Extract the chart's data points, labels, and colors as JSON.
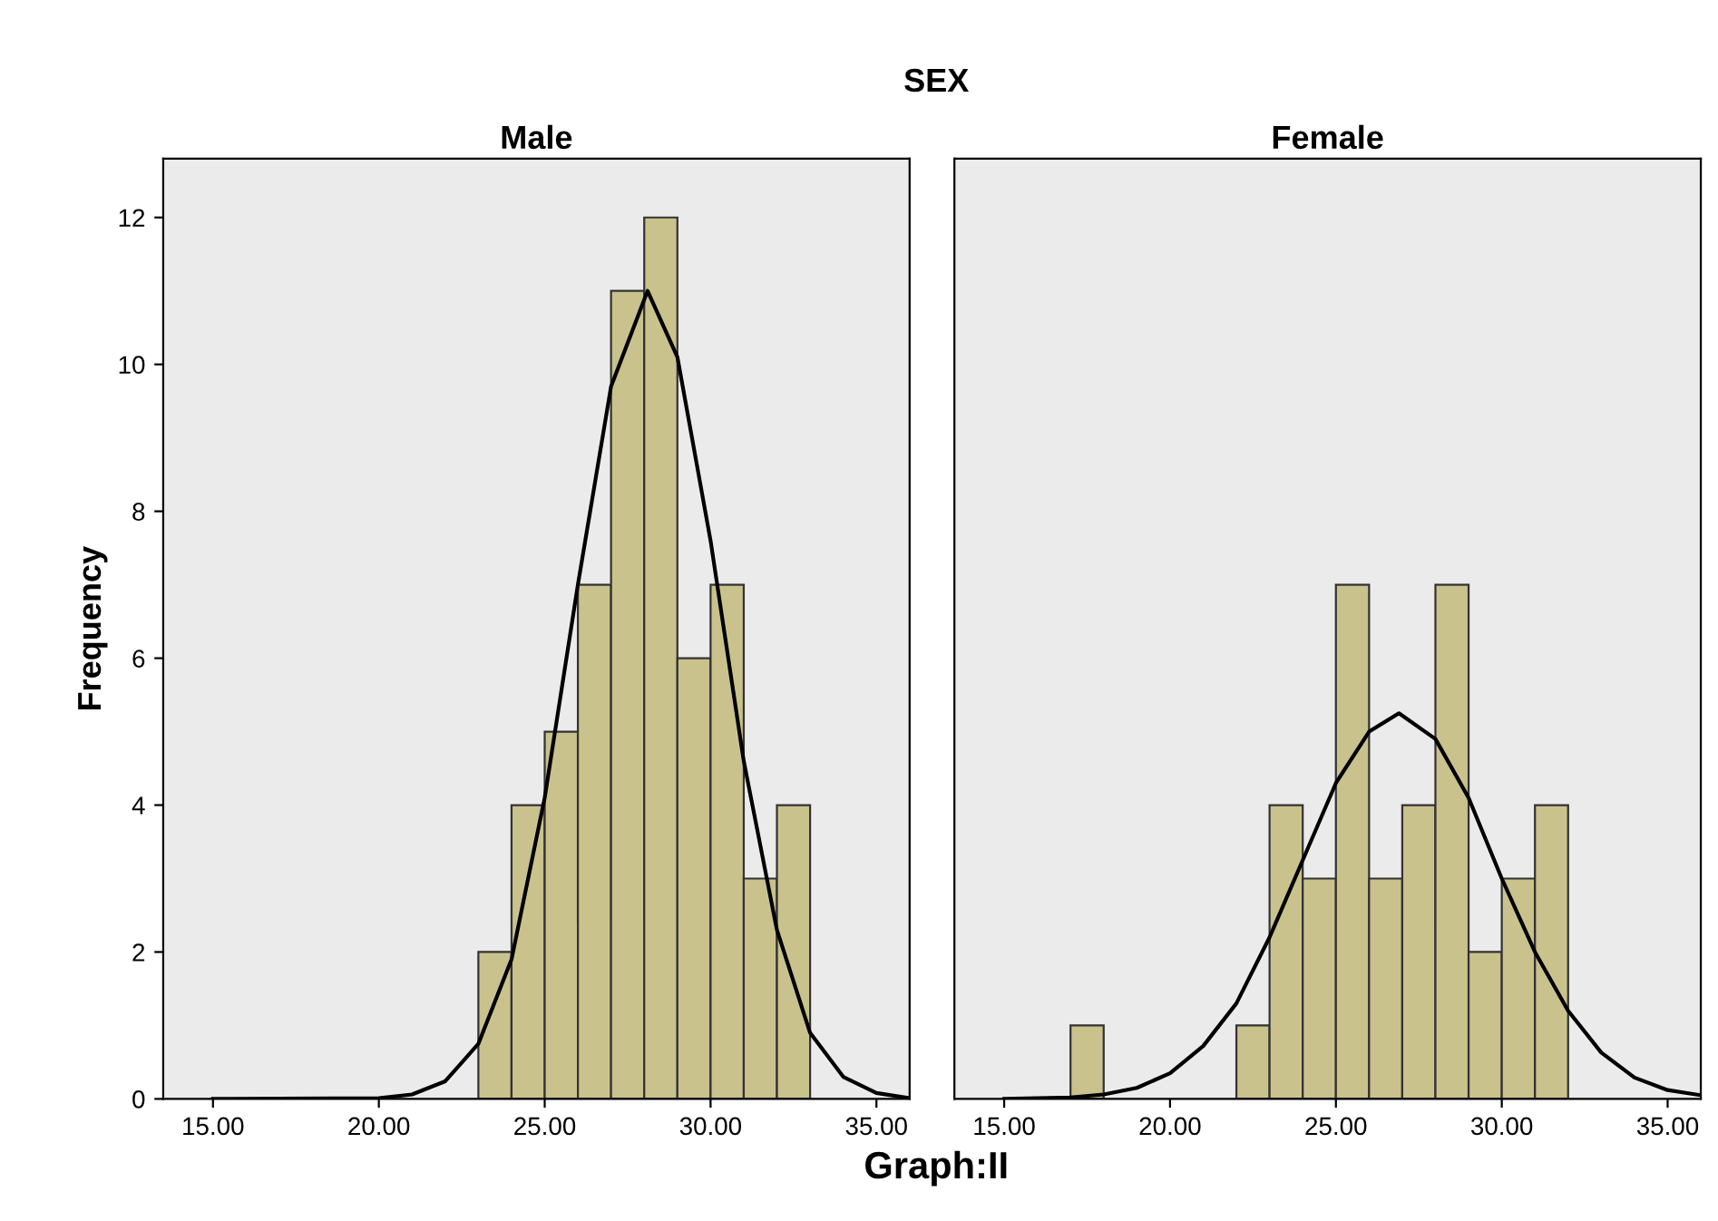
{
  "chart_data": [
    {
      "type": "histogram",
      "title": "Male",
      "ylabel": "Frequency",
      "annotations": [
        "SEX",
        "Graph:II"
      ],
      "bins": [
        23,
        24,
        25,
        26,
        27,
        28,
        29,
        30,
        31,
        32,
        33
      ],
      "values": [
        2,
        4,
        5,
        7,
        11,
        12,
        6,
        7,
        3,
        4
      ],
      "color": "#c9c28c",
      "series": [
        {
          "type": "line",
          "color": "#000000",
          "x": [
            15,
            20,
            21,
            22,
            23,
            24,
            25,
            26,
            27,
            28.1,
            29,
            30,
            31,
            32,
            33,
            34,
            35,
            36
          ],
          "values": [
            0,
            0.01,
            0.06,
            0.24,
            0.75,
            1.9,
            4.1,
            7.0,
            9.7,
            11,
            10.1,
            7.6,
            4.6,
            2.3,
            0.9,
            0.3,
            0.08,
            0.01
          ]
        }
      ],
      "xlim": [
        13.5,
        36
      ],
      "xticks": [
        {
          "value": 15,
          "label": "15.00"
        },
        {
          "value": 20,
          "label": "20.00"
        },
        {
          "value": 25,
          "label": "25.00"
        },
        {
          "value": 30,
          "label": "30.00"
        },
        {
          "value": 35,
          "label": "35.00"
        }
      ],
      "ylim": [
        0,
        12.8
      ],
      "yticks": [
        0,
        2,
        4,
        6,
        8,
        10,
        12
      ],
      "grid": false
    },
    {
      "type": "histogram",
      "title": "Female",
      "bins": [
        17,
        18,
        19,
        20,
        21,
        22,
        23,
        24,
        25,
        26,
        27,
        28,
        29,
        30,
        31,
        32
      ],
      "values": [
        1,
        0,
        0,
        0,
        0,
        1,
        4,
        3,
        7,
        3,
        4,
        7,
        2,
        3,
        4
      ],
      "color": "#c9c28c",
      "series": [
        {
          "type": "line",
          "color": "#000000",
          "x": [
            15,
            17,
            18,
            19,
            20,
            21,
            22,
            23,
            24,
            25,
            26,
            26.9,
            28,
            29,
            30,
            31,
            32,
            33,
            34,
            35,
            36
          ],
          "values": [
            0,
            0.02,
            0.06,
            0.15,
            0.35,
            0.72,
            1.3,
            2.2,
            3.25,
            4.3,
            5.0,
            5.25,
            4.9,
            4.1,
            3.0,
            2.0,
            1.2,
            0.63,
            0.29,
            0.12,
            0.05
          ]
        }
      ],
      "xlim": [
        13.5,
        36
      ],
      "xticks": [
        {
          "value": 15,
          "label": "15.00"
        },
        {
          "value": 20,
          "label": "20.00"
        },
        {
          "value": 25,
          "label": "25.00"
        },
        {
          "value": 30,
          "label": "30.00"
        },
        {
          "value": 35,
          "label": "35.00"
        }
      ],
      "ylim": [
        0,
        12.8
      ],
      "yticks": [
        0,
        2,
        4,
        6,
        8,
        10,
        12
      ],
      "grid": false,
      "tick_labels": "x"
    }
  ]
}
